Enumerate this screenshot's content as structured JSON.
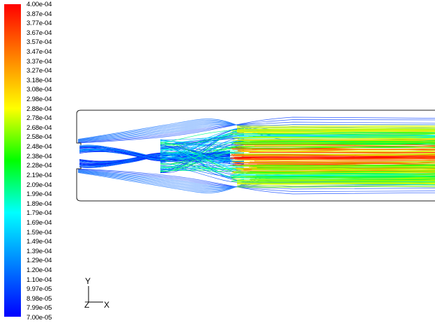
{
  "colorbar": {
    "labels": [
      "4.00e-04",
      "3.87e-04",
      "3.77e-04",
      "3.67e-04",
      "3.57e-04",
      "3.47e-04",
      "3.37e-04",
      "3.27e-04",
      "3.18e-04",
      "3.08e-04",
      "2.98e-04",
      "2.88e-04",
      "2.78e-04",
      "2.68e-04",
      "2.58e-04",
      "2.48e-04",
      "2.38e-04",
      "2.28e-04",
      "2.19e-04",
      "2.09e-04",
      "1.99e-04",
      "1.89e-04",
      "1.79e-04",
      "1.69e-04",
      "1.59e-04",
      "1.49e-04",
      "1.39e-04",
      "1.29e-04",
      "1.20e-04",
      "1.10e-04",
      "9.97e-05",
      "8.98e-05",
      "7.99e-05",
      "7.00e-05"
    ],
    "colors": [
      "#ff0000",
      "#ff8000",
      "#ffff00",
      "#00ff00",
      "#00ffff",
      "#0080ff",
      "#0000ff"
    ]
  },
  "axes": {
    "y_label": "Y",
    "z_label": "Z",
    "x_label": "X"
  }
}
